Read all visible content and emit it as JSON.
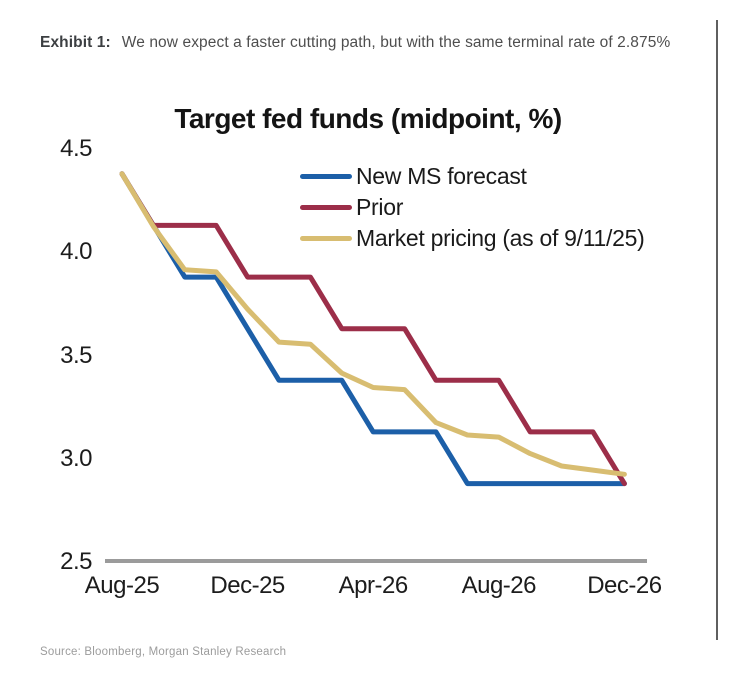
{
  "exhibit": {
    "label": "Exhibit 1:",
    "text": "We now expect a faster cutting path, but with the same terminal rate of 2.875%"
  },
  "source": "Source: Bloomberg, Morgan Stanley Research",
  "colors": {
    "new_ms_forecast": "#1C5FA8",
    "prior": "#9C2E49",
    "market_pricing": "#D8BD71",
    "axis_line": "#9B9B9B",
    "text": "#1C1C1C"
  },
  "chart_data": {
    "type": "line",
    "title": "Target fed funds (midpoint, %)",
    "x": [
      "Aug-25",
      "Sep-25",
      "Oct-25",
      "Nov-25",
      "Dec-25",
      "Jan-26",
      "Feb-26",
      "Mar-26",
      "Apr-26",
      "May-26",
      "Jun-26",
      "Jul-26",
      "Aug-26",
      "Sep-26",
      "Oct-26",
      "Nov-26",
      "Dec-26"
    ],
    "x_tick_labels": [
      "Aug-25",
      "Dec-25",
      "Apr-26",
      "Aug-26",
      "Dec-26"
    ],
    "y_ticks": [
      "4.5",
      "4.0",
      "3.5",
      "3.0",
      "2.5"
    ],
    "y_tick_values": [
      4.5,
      4.0,
      3.5,
      3.0,
      2.5
    ],
    "ylim": [
      2.5,
      4.5
    ],
    "grid": false,
    "legend_position": "top-right-inside",
    "series": [
      {
        "name": "New MS forecast",
        "color": "#1C5FA8",
        "values": [
          4.375,
          4.125,
          3.875,
          3.875,
          3.625,
          3.375,
          3.375,
          3.375,
          3.125,
          3.125,
          3.125,
          2.875,
          2.875,
          2.875,
          2.875,
          2.875,
          2.875
        ]
      },
      {
        "name": "Prior",
        "color": "#9C2E49",
        "values": [
          4.375,
          4.125,
          4.125,
          4.125,
          3.875,
          3.875,
          3.875,
          3.625,
          3.625,
          3.625,
          3.375,
          3.375,
          3.375,
          3.125,
          3.125,
          3.125,
          2.875
        ]
      },
      {
        "name": "Market pricing (as of 9/11/25)",
        "color": "#D8BD71",
        "values": [
          4.375,
          4.12,
          3.91,
          3.9,
          3.72,
          3.56,
          3.55,
          3.41,
          3.34,
          3.33,
          3.17,
          3.11,
          3.1,
          3.02,
          2.96,
          2.94,
          2.92
        ]
      }
    ]
  }
}
